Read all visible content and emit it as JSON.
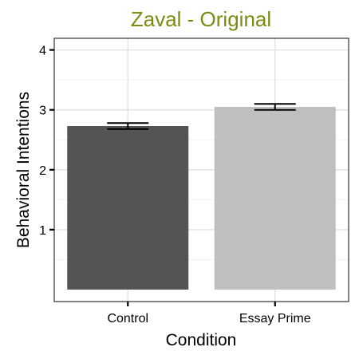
{
  "colors": {
    "title": "#7a8c10",
    "panel_border": "#333333",
    "grid_major": "#e0e0e0",
    "grid_minor": "#f2f2f2",
    "tick": "#000000",
    "error_bar": "#000000"
  },
  "chart_data": {
    "type": "bar",
    "title": "Zaval - Original",
    "xlabel": "Condition",
    "ylabel": "Behavioral Intentions",
    "categories": [
      "Control",
      "Essay Prime"
    ],
    "values": [
      2.73,
      3.05
    ],
    "error": [
      0.05,
      0.05
    ],
    "bar_colors": [
      "#545454",
      "#bfbfbf"
    ],
    "yticks": [
      1,
      2,
      3,
      4
    ],
    "ylim": [
      0,
      4.1
    ],
    "grid": true,
    "theme": "light"
  }
}
